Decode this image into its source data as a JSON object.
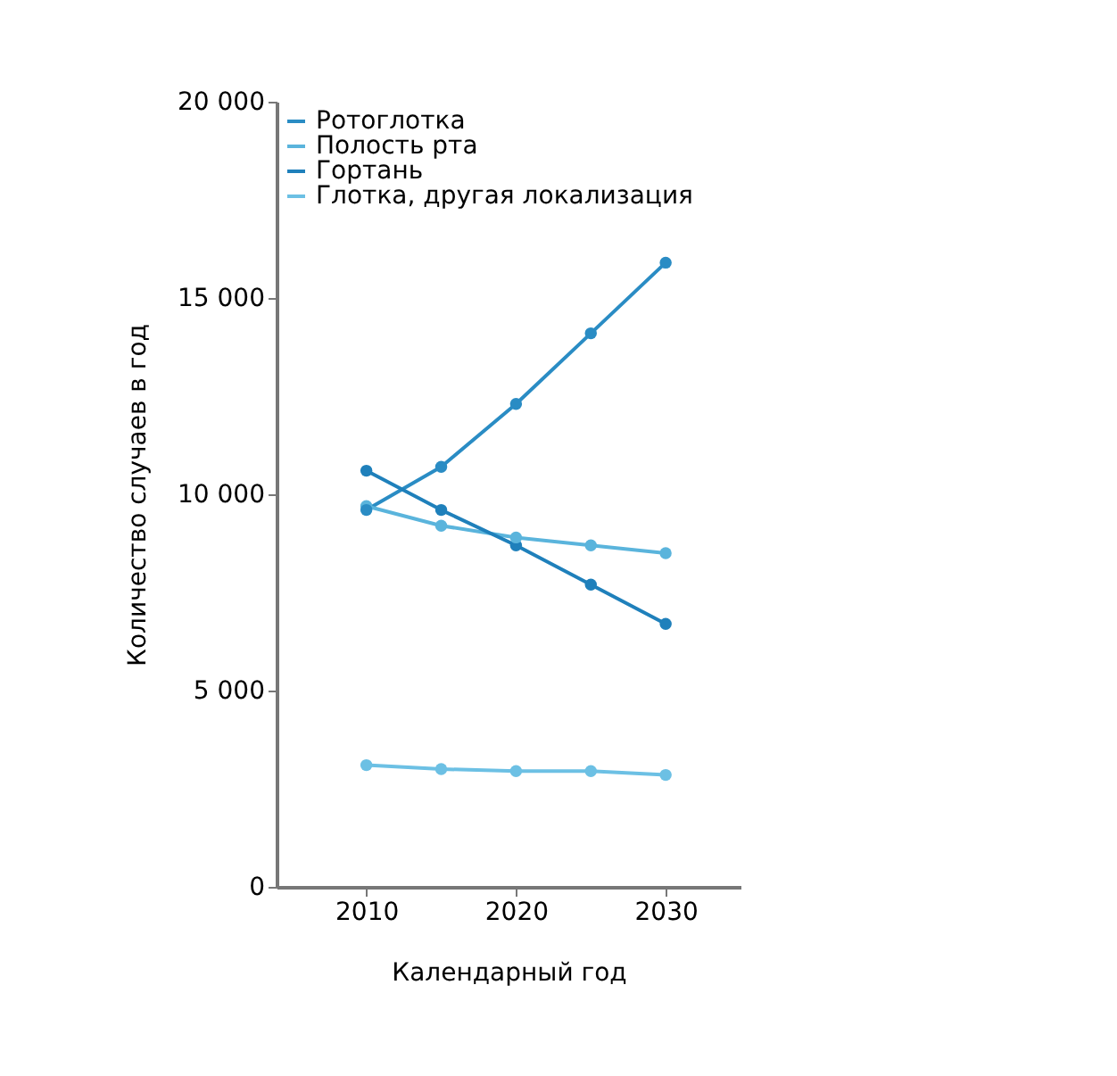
{
  "chart_data": {
    "type": "line",
    "xlabel": "Календарный год",
    "ylabel": "Количество случаев в год",
    "x": [
      2010,
      2015,
      2020,
      2025,
      2030
    ],
    "series": [
      {
        "name": "Ротоглотка",
        "color": "#2a8cc4",
        "values": [
          9600,
          10700,
          12300,
          14100,
          15900
        ]
      },
      {
        "name": "Полость рта",
        "color": "#5ab4dc",
        "values": [
          9700,
          9200,
          8900,
          8700,
          8500
        ]
      },
      {
        "name": "Гортань",
        "color": "#1f80bb",
        "values": [
          10600,
          9600,
          8700,
          7700,
          6700
        ]
      },
      {
        "name": "Глотка, другая локализация",
        "color": "#6cc0e4",
        "values": [
          3100,
          3000,
          2950,
          2950,
          2850
        ]
      }
    ],
    "xlim": [
      2004,
      2035
    ],
    "xticks": [
      2010,
      2020,
      2030
    ],
    "ylim": [
      0,
      20000
    ],
    "yticks": [
      {
        "value": 0,
        "label": "0"
      },
      {
        "value": 5000,
        "label": "5 000"
      },
      {
        "value": 10000,
        "label": "10 000"
      },
      {
        "value": 15000,
        "label": "15 000"
      },
      {
        "value": 20000,
        "label": "20 000"
      }
    ],
    "grid": false,
    "legend": "top left",
    "marker": "circle",
    "line_style": "solid"
  }
}
